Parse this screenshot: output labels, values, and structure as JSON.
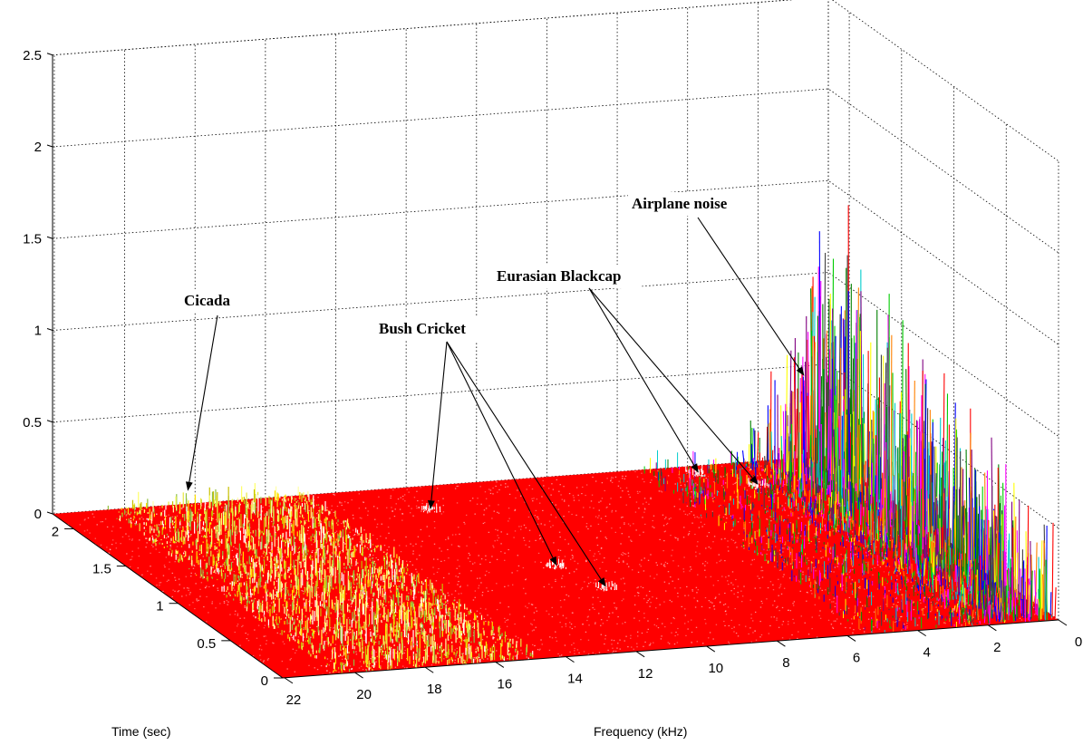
{
  "chart_data": {
    "type": "surface-3d",
    "title": "",
    "xlabel": "Frequency (kHz)",
    "ylabel": "Time (sec)",
    "zlabel": "",
    "x_ticks": [
      "22",
      "20",
      "18",
      "16",
      "14",
      "12",
      "10",
      "8",
      "6",
      "4",
      "2",
      "0"
    ],
    "y_ticks": [
      "0",
      "0.5",
      "1",
      "1.5",
      "2"
    ],
    "z_ticks": [
      "0",
      "0.5",
      "1",
      "1.5",
      "2",
      "2.5"
    ],
    "x_range": [
      0,
      22.05
    ],
    "y_range": [
      0,
      2.2
    ],
    "z_range": [
      0,
      2.5
    ],
    "grid": true,
    "surface_base_color": "#ff0000",
    "annotations": [
      {
        "label": "Cicada",
        "frequency_khz": 18.5,
        "time_sec": 2.1
      },
      {
        "label": "Bush Cricket",
        "frequency_khz": 12.2,
        "time_sec": 1.9
      },
      {
        "label": "Bush Cricket",
        "frequency_khz": 11.0,
        "time_sec": 1.1
      },
      {
        "label": "Bush Cricket",
        "frequency_khz": 10.5,
        "time_sec": 0.8
      },
      {
        "label": "Eurasian Blackcap",
        "frequency_khz": 4.0,
        "time_sec": 2.1
      },
      {
        "label": "Eurasian Blackcap",
        "frequency_khz": 2.9,
        "time_sec": 1.9
      },
      {
        "label": "Airplane noise",
        "frequency_khz": 0.7,
        "time_sec": 2.2
      }
    ],
    "regions": [
      {
        "name": "Cicada band",
        "frequency_khz": [
          15,
          20
        ],
        "peak_amplitude": 0.1
      },
      {
        "name": "Airplane noise",
        "frequency_khz": [
          0,
          2
        ],
        "peak_amplitude": 1.9
      }
    ]
  }
}
